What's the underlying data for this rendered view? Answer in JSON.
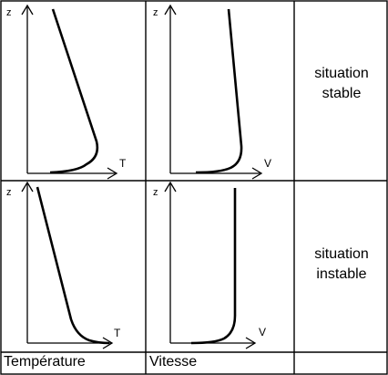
{
  "panels": {
    "stable_temperature": {
      "axis_z": "z",
      "axis_x": "T"
    },
    "stable_speed": {
      "axis_z": "z",
      "axis_x": "V"
    },
    "unstable_temperature": {
      "axis_z": "z",
      "axis_x": "T"
    },
    "unstable_speed": {
      "axis_z": "z",
      "axis_x": "V"
    }
  },
  "rows": {
    "stable": {
      "line1": "situation",
      "line2": "stable"
    },
    "unstable": {
      "line1": "situation",
      "line2": "instable"
    }
  },
  "columns": {
    "temperature": "Température",
    "speed": "Vitesse"
  },
  "colors": {
    "line": "#000000",
    "background": "#ffffff"
  }
}
